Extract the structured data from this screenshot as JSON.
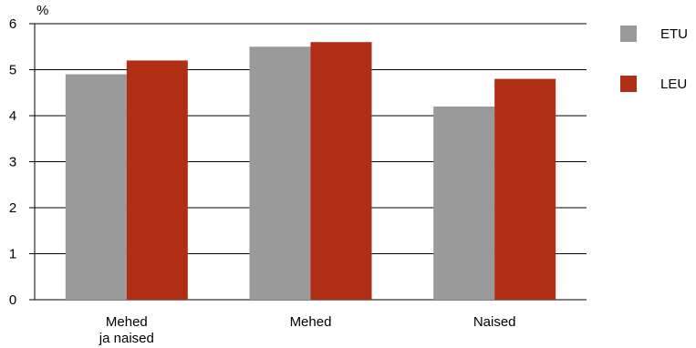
{
  "chart_data": {
    "type": "bar",
    "categories": [
      [
        "Mehed",
        "ja naised"
      ],
      [
        "Mehed"
      ],
      [
        "Naised"
      ]
    ],
    "series": [
      {
        "name": "ETU",
        "values": [
          4.9,
          5.5,
          4.2
        ],
        "color": "#9a9a9a"
      },
      {
        "name": "LEU",
        "values": [
          5.2,
          5.6,
          4.8
        ],
        "color": "#b02e14"
      }
    ],
    "ylabel": "%",
    "ylim": [
      0,
      6
    ],
    "yticks": [
      "0",
      "1",
      "2",
      "3",
      "4",
      "5",
      "6"
    ],
    "grid": true,
    "legend_position": "right"
  }
}
